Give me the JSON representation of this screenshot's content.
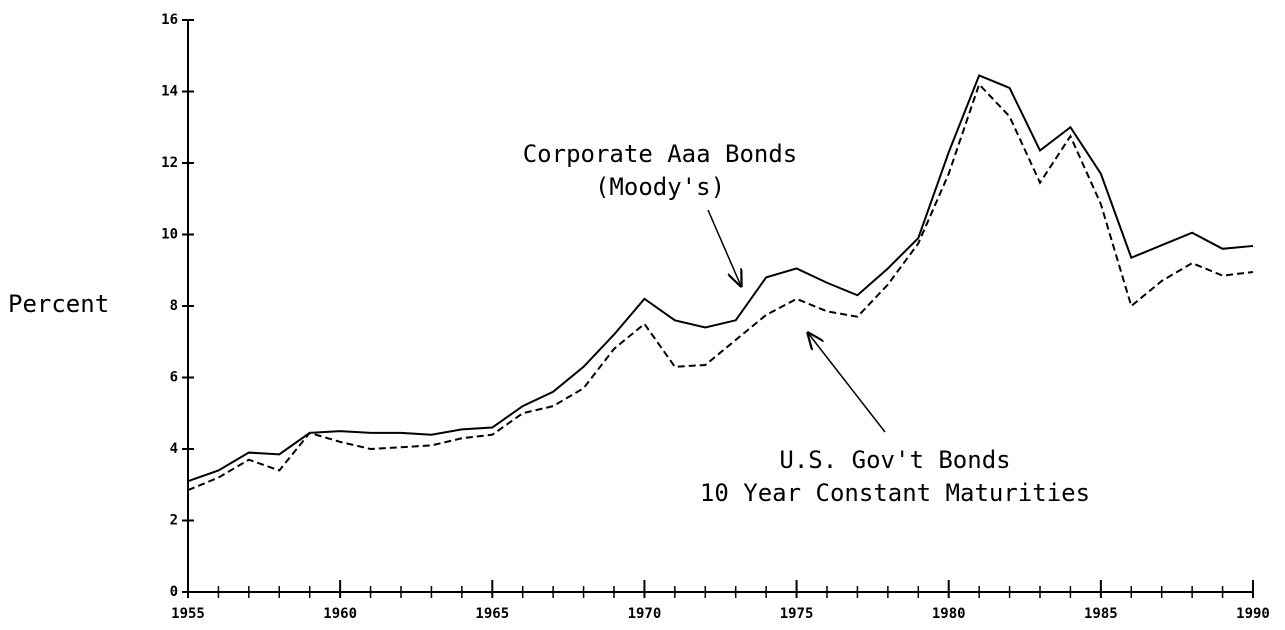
{
  "chart_data": {
    "type": "line",
    "y_label": "Percent",
    "x": [
      1955,
      1956,
      1957,
      1958,
      1959,
      1960,
      1961,
      1962,
      1963,
      1964,
      1965,
      1966,
      1967,
      1968,
      1969,
      1970,
      1971,
      1972,
      1973,
      1974,
      1975,
      1976,
      1977,
      1978,
      1979,
      1980,
      1981,
      1982,
      1983,
      1984,
      1985,
      1986,
      1987,
      1988,
      1989,
      1990
    ],
    "series": [
      {
        "name": "Corporate Aaa Bonds (Moody's)",
        "color": "#000000",
        "dash": false,
        "values": [
          3.1,
          3.4,
          3.9,
          3.85,
          4.45,
          4.5,
          4.45,
          4.45,
          4.4,
          4.55,
          4.6,
          5.2,
          5.6,
          6.3,
          7.2,
          8.2,
          7.6,
          7.4,
          7.6,
          8.8,
          9.05,
          8.65,
          8.3,
          9.05,
          9.9,
          12.3,
          14.45,
          14.1,
          12.35,
          13.0,
          11.7,
          9.35,
          9.7,
          10.05,
          9.6,
          9.68
        ]
      },
      {
        "name": "U.S. Gov't Bonds 10 Year Constant Maturities",
        "color": "#000000",
        "dash": true,
        "values": [
          2.85,
          3.2,
          3.7,
          3.4,
          4.45,
          4.2,
          4.0,
          4.05,
          4.1,
          4.3,
          4.4,
          5.0,
          5.2,
          5.7,
          6.8,
          7.5,
          6.3,
          6.35,
          7.05,
          7.75,
          8.2,
          7.85,
          7.7,
          8.6,
          9.75,
          11.7,
          14.2,
          13.3,
          11.45,
          12.75,
          10.85,
          8.0,
          8.7,
          9.2,
          8.85,
          8.95
        ]
      }
    ],
    "annotations": [
      {
        "lines": [
          "Corporate Aaa Bonds",
          "(Moody's)"
        ]
      },
      {
        "lines": [
          "U.S. Gov't Bonds",
          "10 Year Constant Maturities"
        ]
      }
    ],
    "xlim": [
      1955,
      1990
    ],
    "xticks": [
      1955,
      1960,
      1965,
      1970,
      1975,
      1980,
      1985,
      1990
    ],
    "ylim": [
      0,
      16
    ],
    "yticks": [
      0,
      2,
      4,
      6,
      8,
      10,
      12,
      14,
      16
    ],
    "grid": false
  }
}
